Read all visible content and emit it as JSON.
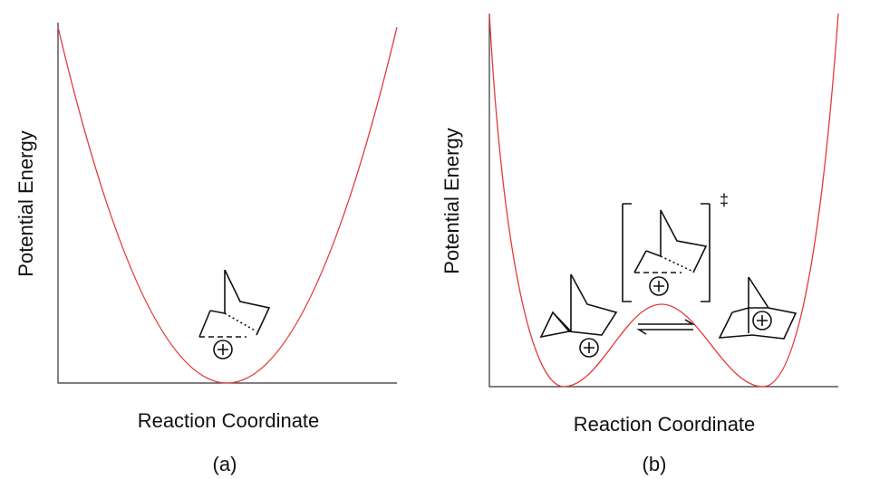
{
  "panels": [
    {
      "y_label": "Potential Energy",
      "x_label": "Reaction Coordinate",
      "caption": "(a)"
    },
    {
      "y_label": "Potential Energy",
      "x_label": "Reaction Coordinate",
      "caption": "(b)",
      "transition_state_mark": "‡"
    }
  ]
}
